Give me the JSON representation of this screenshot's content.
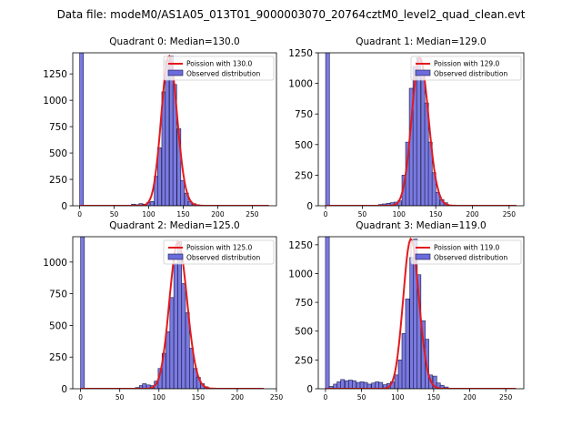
{
  "figure_title": "Data file: modeM0/AS1A05_013T01_9000003070_20764cztM0_level2_quad_clean.evt",
  "colors": {
    "hist_fill": "#6b6bdb",
    "hist_edge": "#1a1a4d",
    "poisson": "#e31a1c",
    "axes": "#000000",
    "background": "#ffffff"
  },
  "chart_data": [
    {
      "type": "bar",
      "title": "Quadrant 0: Median=130.0",
      "xlabel": "",
      "ylabel": "",
      "xlim": [
        -10,
        285
      ],
      "ylim": [
        0,
        1450
      ],
      "xticks": [
        0,
        50,
        100,
        150,
        200,
        250
      ],
      "yticks": [
        0,
        250,
        500,
        750,
        1000,
        1250
      ],
      "bin_width": 5.5,
      "bins": [
        [
          0,
          1500
        ],
        [
          75,
          15
        ],
        [
          80,
          10
        ],
        [
          86,
          20
        ],
        [
          91,
          15
        ],
        [
          97,
          30
        ],
        [
          102,
          40
        ],
        [
          108,
          280
        ],
        [
          113,
          550
        ],
        [
          119,
          1080
        ],
        [
          124,
          1380
        ],
        [
          130,
          1420
        ],
        [
          135,
          1150
        ],
        [
          141,
          730
        ],
        [
          146,
          240
        ],
        [
          152,
          120
        ],
        [
          157,
          40
        ],
        [
          163,
          20
        ],
        [
          168,
          10
        ]
      ],
      "poisson_label": "Poission with 130.0",
      "poisson_mean": 130.0,
      "poisson_x_range": [
        0,
        275
      ],
      "hist_label": "Observed distribution"
    },
    {
      "type": "bar",
      "title": "Quadrant 1: Median=129.0",
      "xlabel": "",
      "ylabel": "",
      "xlim": [
        -10,
        270
      ],
      "ylim": [
        0,
        1250
      ],
      "xticks": [
        0,
        50,
        100,
        150,
        200,
        250
      ],
      "yticks": [
        0,
        250,
        500,
        750,
        1000,
        1250
      ],
      "bin_width": 5.2,
      "bins": [
        [
          0,
          1300
        ],
        [
          72,
          10
        ],
        [
          77,
          15
        ],
        [
          83,
          20
        ],
        [
          88,
          25
        ],
        [
          93,
          30
        ],
        [
          98,
          40
        ],
        [
          104,
          250
        ],
        [
          109,
          520
        ],
        [
          114,
          960
        ],
        [
          119,
          1140
        ],
        [
          124,
          1210
        ],
        [
          130,
          1050
        ],
        [
          135,
          840
        ],
        [
          140,
          520
        ],
        [
          145,
          270
        ],
        [
          150,
          110
        ],
        [
          156,
          50
        ],
        [
          161,
          25
        ]
      ],
      "poisson_label": "Poission with 129.0",
      "poisson_mean": 129.0,
      "poisson_x_range": [
        0,
        260
      ],
      "hist_label": "Observed distribution"
    },
    {
      "type": "bar",
      "title": "Quadrant 2: Median=125.0",
      "xlabel": "",
      "ylabel": "",
      "xlim": [
        -10,
        250
      ],
      "ylim": [
        0,
        1200
      ],
      "xticks": [
        0,
        50,
        100,
        150,
        200,
        250
      ],
      "yticks": [
        0,
        250,
        500,
        750,
        1000
      ],
      "bin_width": 4.9,
      "bins": [
        [
          0,
          1260
        ],
        [
          70,
          10
        ],
        [
          75,
          25
        ],
        [
          79,
          40
        ],
        [
          84,
          30
        ],
        [
          89,
          25
        ],
        [
          94,
          60
        ],
        [
          99,
          160
        ],
        [
          104,
          280
        ],
        [
          109,
          450
        ],
        [
          114,
          720
        ],
        [
          119,
          990
        ],
        [
          124,
          1160
        ],
        [
          129,
          830
        ],
        [
          134,
          600
        ],
        [
          139,
          320
        ],
        [
          144,
          160
        ],
        [
          148,
          90
        ],
        [
          153,
          40
        ],
        [
          158,
          15
        ]
      ],
      "poisson_label": "Poission with 125.0",
      "poisson_mean": 125.0,
      "poisson_x_range": [
        0,
        235
      ],
      "hist_label": "Observed distribution"
    },
    {
      "type": "bar",
      "title": "Quadrant 3: Median=119.0",
      "xlabel": "",
      "ylabel": "",
      "xlim": [
        -10,
        275
      ],
      "ylim": [
        0,
        1320
      ],
      "xticks": [
        0,
        50,
        100,
        150,
        200,
        250
      ],
      "yticks": [
        0,
        250,
        500,
        750,
        1000,
        1250
      ],
      "bin_width": 5.3,
      "bins": [
        [
          0,
          1360
        ],
        [
          5,
          20
        ],
        [
          11,
          40
        ],
        [
          16,
          60
        ],
        [
          21,
          80
        ],
        [
          27,
          70
        ],
        [
          32,
          75
        ],
        [
          37,
          70
        ],
        [
          43,
          55
        ],
        [
          48,
          60
        ],
        [
          53,
          55
        ],
        [
          58,
          40
        ],
        [
          64,
          50
        ],
        [
          69,
          60
        ],
        [
          74,
          55
        ],
        [
          80,
          35
        ],
        [
          85,
          45
        ],
        [
          90,
          60
        ],
        [
          96,
          120
        ],
        [
          101,
          250
        ],
        [
          106,
          480
        ],
        [
          111,
          780
        ],
        [
          117,
          1140
        ],
        [
          122,
          1300
        ],
        [
          127,
          990
        ],
        [
          133,
          590
        ],
        [
          138,
          430
        ],
        [
          143,
          120
        ],
        [
          149,
          110
        ],
        [
          154,
          50
        ],
        [
          159,
          30
        ],
        [
          165,
          15
        ]
      ],
      "poisson_label": "Poission with 119.0",
      "poisson_mean": 119.0,
      "poisson_x_range": [
        0,
        265
      ],
      "hist_label": "Observed distribution"
    }
  ]
}
